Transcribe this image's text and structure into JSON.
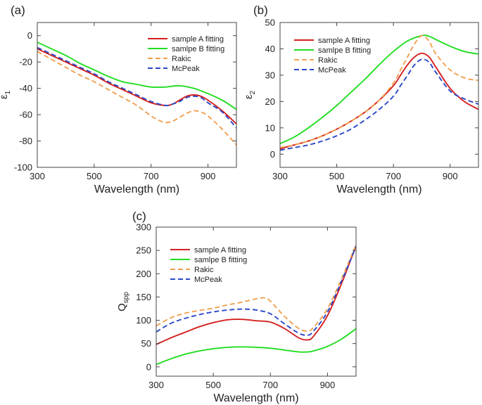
{
  "chart_data": [
    {
      "panel": "(a)",
      "type": "line",
      "xlabel": "Wavelength (nm)",
      "ylabel": "ε",
      "ylabel_sub": "1",
      "xlim": [
        300,
        1000
      ],
      "ylim": [
        -100,
        10
      ],
      "xticks": [
        "300",
        "500",
        "700",
        "900"
      ],
      "yticks": [
        "0",
        "-20",
        "-40",
        "-60",
        "-80",
        "-100"
      ],
      "xtick_values": [
        300,
        500,
        700,
        900
      ],
      "ytick_values": [
        0,
        -20,
        -40,
        -60,
        -80,
        -100
      ],
      "legend": [
        "sample A fitting",
        "samlpe B fitting",
        "Rakic",
        "McPeak"
      ],
      "series": [
        {
          "name": "sample A fitting",
          "color": "#d42020",
          "dash": "solid",
          "x": [
            300,
            350,
            400,
            450,
            500,
            550,
            600,
            650,
            700,
            750,
            775,
            800,
            825,
            850,
            875,
            900,
            950,
            1000
          ],
          "y": [
            -10,
            -15,
            -20,
            -25,
            -30,
            -36,
            -41,
            -46,
            -51,
            -53,
            -52,
            -49,
            -46,
            -45,
            -46,
            -49,
            -57,
            -67
          ]
        },
        {
          "name": "samlpe B fitting",
          "color": "#22dd22",
          "dash": "solid",
          "x": [
            300,
            350,
            400,
            450,
            500,
            550,
            600,
            650,
            700,
            750,
            800,
            850,
            900,
            950,
            1000
          ],
          "y": [
            -5,
            -10,
            -15,
            -21,
            -26,
            -31,
            -35,
            -37,
            -39,
            -39,
            -38,
            -40,
            -44,
            -49,
            -56
          ]
        },
        {
          "name": "Rakic",
          "color": "#f0a050",
          "dash": "dashed",
          "x": [
            300,
            350,
            400,
            450,
            500,
            550,
            600,
            650,
            700,
            725,
            750,
            775,
            800,
            825,
            850,
            875,
            900,
            950,
            1000
          ],
          "y": [
            -12,
            -18,
            -24,
            -30,
            -35,
            -41,
            -47,
            -53,
            -61,
            -64,
            -66,
            -65,
            -62,
            -59,
            -57,
            -58,
            -61,
            -71,
            -83
          ]
        },
        {
          "name": "McPeak",
          "color": "#2848c8",
          "dash": "dashed",
          "x": [
            300,
            350,
            400,
            450,
            500,
            550,
            600,
            650,
            700,
            750,
            775,
            800,
            825,
            850,
            875,
            900,
            950,
            1000
          ],
          "y": [
            -9,
            -14,
            -19,
            -24,
            -29,
            -35,
            -40,
            -45,
            -50,
            -53,
            -52,
            -50,
            -47,
            -46,
            -47,
            -51,
            -58,
            -70
          ]
        }
      ]
    },
    {
      "panel": "(b)",
      "type": "line",
      "xlabel": "Wavelength (nm)",
      "ylabel": "ε",
      "ylabel_sub": "2",
      "xlim": [
        300,
        1000
      ],
      "ylim": [
        -5,
        50
      ],
      "xticks": [
        "300",
        "500",
        "700",
        "900"
      ],
      "yticks": [
        "0",
        "10",
        "20",
        "30",
        "40",
        "50"
      ],
      "xtick_values": [
        300,
        500,
        700,
        900
      ],
      "ytick_values": [
        0,
        10,
        20,
        30,
        40,
        50
      ],
      "legend": [
        "sample A fitting",
        "samlpe B fitting",
        "Rakic",
        "McPeak"
      ],
      "series": [
        {
          "name": "sample A fitting",
          "color": "#d42020",
          "dash": "solid",
          "x": [
            300,
            350,
            400,
            450,
            500,
            550,
            600,
            650,
            700,
            725,
            750,
            775,
            800,
            825,
            850,
            900,
            950,
            1000
          ],
          "y": [
            2,
            3.5,
            5,
            7,
            9.5,
            12.5,
            16,
            20.5,
            26,
            30,
            34,
            37,
            38.3,
            37,
            33,
            25,
            20,
            17
          ]
        },
        {
          "name": "samlpe B fitting",
          "color": "#22dd22",
          "dash": "solid",
          "x": [
            300,
            350,
            400,
            450,
            500,
            550,
            600,
            650,
            700,
            750,
            800,
            825,
            850,
            900,
            950,
            1000
          ],
          "y": [
            4,
            6.5,
            10,
            14,
            18.5,
            23.5,
            28.5,
            34,
            39,
            43,
            45,
            44.8,
            43.5,
            41,
            39,
            38
          ]
        },
        {
          "name": "Rakic",
          "color": "#f0a050",
          "dash": "dashed",
          "x": [
            300,
            350,
            400,
            450,
            500,
            550,
            600,
            650,
            700,
            725,
            750,
            775,
            800,
            825,
            850,
            900,
            950,
            1000
          ],
          "y": [
            2.5,
            3.5,
            5,
            7,
            9.5,
            12.5,
            16,
            20.5,
            27,
            32,
            37,
            42,
            45,
            43,
            38,
            32,
            29,
            28
          ]
        },
        {
          "name": "McPeak",
          "color": "#2848c8",
          "dash": "dashed",
          "x": [
            300,
            350,
            400,
            450,
            500,
            550,
            600,
            650,
            700,
            725,
            750,
            775,
            800,
            825,
            850,
            900,
            950,
            1000
          ],
          "y": [
            1.5,
            2.5,
            3.5,
            5,
            7,
            9.5,
            13,
            17,
            22,
            26,
            30,
            34,
            36,
            35,
            31,
            24,
            21,
            19
          ]
        }
      ]
    },
    {
      "panel": "(c)",
      "type": "line",
      "xlabel": "Wavelength (nm)",
      "ylabel": "Q",
      "ylabel_sub": "spp",
      "xlim": [
        300,
        1000
      ],
      "ylim": [
        -20,
        300
      ],
      "xticks": [
        "300",
        "500",
        "700",
        "900"
      ],
      "yticks": [
        "0",
        "50",
        "100",
        "150",
        "200",
        "250",
        "300"
      ],
      "xtick_values": [
        300,
        500,
        700,
        900
      ],
      "ytick_values": [
        0,
        50,
        100,
        150,
        200,
        250,
        300
      ],
      "legend": [
        "sample A fitting",
        "samlpe B fitting",
        "Rakic",
        "McPeak"
      ],
      "series": [
        {
          "name": "sample A fitting",
          "color": "#d42020",
          "dash": "solid",
          "x": [
            300,
            350,
            400,
            450,
            500,
            550,
            600,
            650,
            700,
            750,
            800,
            830,
            850,
            900,
            950,
            1000
          ],
          "y": [
            48,
            62,
            74,
            86,
            95,
            101,
            102,
            99,
            96,
            82,
            62,
            58,
            65,
            110,
            180,
            260
          ]
        },
        {
          "name": "samlpe B fitting",
          "color": "#22dd22",
          "dash": "solid",
          "x": [
            300,
            350,
            400,
            450,
            500,
            550,
            600,
            650,
            700,
            750,
            800,
            830,
            850,
            900,
            950,
            1000
          ],
          "y": [
            5,
            17,
            27,
            34,
            39,
            42,
            43,
            42,
            40,
            36,
            32,
            32,
            34,
            44,
            60,
            82
          ]
        },
        {
          "name": "Rakic",
          "color": "#f0a050",
          "dash": "dashed",
          "x": [
            300,
            350,
            400,
            450,
            500,
            550,
            600,
            650,
            680,
            700,
            750,
            800,
            830,
            850,
            900,
            950,
            1000
          ],
          "y": [
            88,
            105,
            115,
            121,
            126,
            133,
            139,
            146,
            148,
            141,
            108,
            82,
            77,
            84,
            125,
            190,
            262
          ]
        },
        {
          "name": "McPeak",
          "color": "#2848c8",
          "dash": "dashed",
          "x": [
            300,
            350,
            400,
            450,
            500,
            550,
            600,
            650,
            700,
            750,
            800,
            830,
            850,
            900,
            950,
            1000
          ],
          "y": [
            75,
            93,
            104,
            112,
            118,
            122,
            124,
            122,
            114,
            92,
            72,
            68,
            76,
            118,
            185,
            258
          ]
        }
      ]
    }
  ]
}
